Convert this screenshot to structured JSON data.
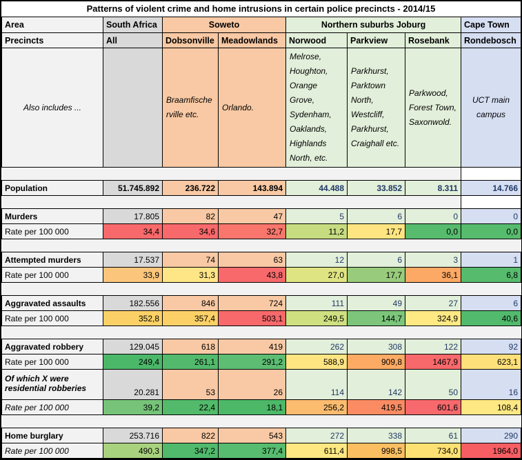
{
  "title": "Patterns of violent crime and home intrusions in certain police precincts - 2014/15",
  "colors": {
    "grid": "#000000",
    "label_column": "#F2F2F2",
    "spacer_fill": "#F2F2F2",
    "south_africa_fill": "#D9D9D9",
    "soweto_fill": "#F8C9A4",
    "northern_fill": "#E2EFDA",
    "cape_town_fill": "#D6DEF2",
    "navy_number_text": "#1F3864",
    "heat_red": "#F8696B",
    "heat_yellow": "#FFE983",
    "heat_green": "#57BB6E"
  },
  "header": {
    "row1": {
      "area": "Area",
      "groups": [
        {
          "label": "South Africa",
          "span": 1
        },
        {
          "label": "Soweto",
          "span": 2
        },
        {
          "label": "Northern suburbs Joburg",
          "span": 3
        },
        {
          "label": "Cape Town",
          "span": 1
        }
      ]
    },
    "row2": {
      "label": "Precincts",
      "cells": [
        "All",
        "Dobsonville",
        "Meadowlands",
        "Norwood",
        "Parkview",
        "Rosebank",
        "Rondebosch"
      ]
    }
  },
  "also_includes": {
    "label": "Also includes ...",
    "cells": [
      "",
      "Braamfischerville etc.",
      "Orlando.",
      "Melrose, Houghton, Orange Grove, Sydenham, Oaklands, Highlands North, etc.",
      "Parkhurst, Parktown North, Westcliff, Parkhurst, Craighall etc.",
      "Parkwood, Forest Town, Saxonwold.",
      "UCT main campus"
    ]
  },
  "body_rows": [
    {
      "kind": "spacer",
      "white_last": true
    },
    {
      "kind": "counts",
      "key": "population",
      "label": "Population",
      "label_style": "bold",
      "values_bold": true,
      "values": [
        "51.745.892",
        "236.722",
        "143.894",
        "44.488",
        "33.852",
        "8.311",
        "14.766"
      ]
    },
    {
      "kind": "spacer",
      "white_last": true
    },
    {
      "kind": "counts",
      "key": "murders",
      "label": "Murders",
      "label_style": "bold",
      "values": [
        "17.805",
        "82",
        "47",
        "5",
        "6",
        "0",
        "0"
      ]
    },
    {
      "kind": "rates",
      "key": "murders-rate",
      "label": "Rate per 100 000",
      "label_style": "regular",
      "values": [
        "34,4",
        "34,6",
        "32,7",
        "11,2",
        "17,7",
        "0,0",
        "0,0"
      ],
      "cell_colors": [
        "#F8696B",
        "#F8696B",
        "#F8766C",
        "#C7DC80",
        "#FFE582",
        "#57BB6E",
        "#57BB6E"
      ]
    },
    {
      "kind": "spacer"
    },
    {
      "kind": "counts",
      "key": "attempted-murders",
      "label": "Attempted murders",
      "label_style": "bold",
      "values": [
        "17.537",
        "74",
        "63",
        "12",
        "6",
        "3",
        "1"
      ]
    },
    {
      "kind": "rates",
      "key": "attempted-murders-rate",
      "label": "Rate per 100 000",
      "label_style": "regular",
      "values": [
        "33,9",
        "31,3",
        "43,8",
        "27,0",
        "17,7",
        "36,1",
        "6,8"
      ],
      "cell_colors": [
        "#FBC67C",
        "#FEE586",
        "#F8696B",
        "#DFE482",
        "#98CB7B",
        "#FCA965",
        "#56BB6D"
      ]
    },
    {
      "kind": "spacer"
    },
    {
      "kind": "counts",
      "key": "aggravated-assaults",
      "label": "Aggravated assaults",
      "label_style": "bold",
      "values": [
        "182.556",
        "846",
        "724",
        "111",
        "49",
        "27",
        "6"
      ]
    },
    {
      "kind": "rates",
      "key": "aggravated-assaults-rate",
      "label": "Rate per 100 000",
      "label_style": "regular",
      "values": [
        "352,8",
        "357,4",
        "503,1",
        "249,5",
        "144,7",
        "324,9",
        "40,6"
      ],
      "cell_colors": [
        "#FBD167",
        "#FBD167",
        "#F8696B",
        "#CFE081",
        "#7CC57B",
        "#FEE983",
        "#52BA6C"
      ]
    },
    {
      "kind": "spacer"
    },
    {
      "kind": "counts",
      "key": "aggravated-robbery",
      "label": "Aggravated robbery",
      "label_style": "bold",
      "values": [
        "129.045",
        "618",
        "419",
        "262",
        "308",
        "122",
        "92"
      ]
    },
    {
      "kind": "rates",
      "key": "aggravated-robbery-rate",
      "label": "Rate per 100 000",
      "label_style": "regular",
      "values": [
        "249,4",
        "261,1",
        "291,2",
        "588,9",
        "909,8",
        "1467,9",
        "623,1"
      ],
      "cell_colors": [
        "#4BB869",
        "#53BA6D",
        "#5DBD73",
        "#FEE582",
        "#FCAA64",
        "#F8696B",
        "#FEE07A"
      ]
    },
    {
      "kind": "counts",
      "key": "residential-robberies",
      "label": "Of which X were residential robberies",
      "label_style": "bold-italic",
      "tall": true,
      "values": [
        "20.281",
        "53",
        "26",
        "114",
        "142",
        "50",
        "16"
      ]
    },
    {
      "kind": "rates",
      "key": "residential-robberies-rate",
      "label": "Rate per 100 000",
      "label_style": "italic",
      "values": [
        "39,2",
        "22,4",
        "18,1",
        "256,2",
        "419,5",
        "601,6",
        "108,4"
      ],
      "cell_colors": [
        "#76C379",
        "#52BA6A",
        "#4CB868",
        "#FCBC6F",
        "#FA8B62",
        "#F7696C",
        "#FEE883"
      ]
    },
    {
      "kind": "spacer"
    },
    {
      "kind": "counts",
      "key": "home-burglary",
      "label": "Home burglary",
      "label_style": "bold",
      "values": [
        "253.716",
        "822",
        "543",
        "272",
        "338",
        "61",
        "290"
      ]
    },
    {
      "kind": "rates",
      "key": "home-burglary-rate",
      "label": "Rate per 100 000",
      "label_style": "italic",
      "values": [
        "490,3",
        "347,2",
        "377,4",
        "611,4",
        "998,5",
        "734,0",
        "1964,0"
      ],
      "cell_colors": [
        "#A8D27E",
        "#50B96B",
        "#57BC6F",
        "#FEE882",
        "#FBBF62",
        "#FEE173",
        "#F65E63"
      ]
    }
  ]
}
